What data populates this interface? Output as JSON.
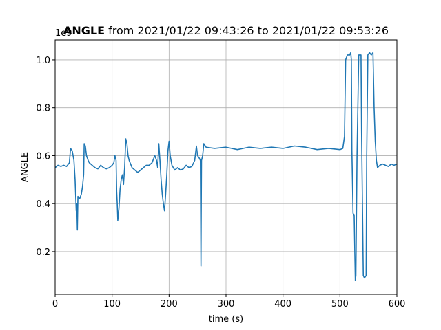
{
  "chart_data": {
    "type": "line",
    "title_variable": "ANGLE",
    "title": "from 2021/01/22 09:43:26 to 2021/01/22 09:53:26",
    "x_label": "time (s)",
    "y_label": "ANGLE",
    "y_offset_text": "1e9",
    "x": [
      0,
      5,
      10,
      15,
      20,
      25,
      27,
      30,
      33,
      35,
      37,
      38,
      39,
      40,
      43,
      46,
      48,
      50,
      51,
      53,
      55,
      58,
      60,
      65,
      70,
      75,
      80,
      85,
      90,
      95,
      100,
      103,
      105,
      107,
      108,
      109,
      110,
      112,
      114,
      116,
      118,
      120,
      122,
      124,
      126,
      128,
      130,
      135,
      140,
      145,
      150,
      155,
      160,
      165,
      170,
      175,
      178,
      180,
      182,
      184,
      186,
      188,
      190,
      192,
      194,
      196,
      198,
      200,
      202,
      205,
      210,
      215,
      220,
      225,
      230,
      235,
      240,
      245,
      248,
      250,
      253,
      255,
      256,
      257,
      259,
      261,
      265,
      280,
      300,
      320,
      340,
      360,
      380,
      400,
      420,
      440,
      460,
      480,
      500,
      505,
      508,
      510,
      513,
      517,
      519,
      520,
      521,
      523,
      525,
      527,
      528,
      530,
      533,
      537,
      538,
      540,
      541,
      543,
      546,
      547,
      549,
      552,
      555,
      558,
      560,
      562,
      564,
      566,
      570,
      575,
      580,
      585,
      590,
      595,
      600
    ],
    "series": [
      {
        "name": "ANGLE",
        "color": "#1f77b4",
        "values": [
          0.55,
          0.56,
          0.555,
          0.56,
          0.555,
          0.57,
          0.63,
          0.62,
          0.58,
          0.5,
          0.37,
          0.4,
          0.29,
          0.43,
          0.42,
          0.44,
          0.47,
          0.52,
          0.65,
          0.64,
          0.6,
          0.58,
          0.57,
          0.56,
          0.55,
          0.545,
          0.56,
          0.55,
          0.545,
          0.55,
          0.56,
          0.57,
          0.6,
          0.58,
          0.45,
          0.4,
          0.33,
          0.38,
          0.46,
          0.5,
          0.52,
          0.48,
          0.55,
          0.67,
          0.65,
          0.6,
          0.58,
          0.55,
          0.54,
          0.53,
          0.54,
          0.55,
          0.56,
          0.56,
          0.57,
          0.6,
          0.58,
          0.55,
          0.65,
          0.58,
          0.5,
          0.44,
          0.4,
          0.37,
          0.44,
          0.52,
          0.62,
          0.66,
          0.6,
          0.56,
          0.54,
          0.55,
          0.54,
          0.545,
          0.56,
          0.55,
          0.555,
          0.58,
          0.64,
          0.6,
          0.59,
          0.58,
          0.14,
          0.58,
          0.6,
          0.65,
          0.635,
          0.63,
          0.635,
          0.625,
          0.635,
          0.63,
          0.635,
          0.63,
          0.64,
          0.635,
          0.625,
          0.63,
          0.625,
          0.63,
          0.68,
          1.0,
          1.02,
          1.02,
          1.03,
          1.0,
          0.62,
          0.36,
          0.35,
          0.08,
          0.1,
          0.6,
          1.02,
          1.02,
          0.7,
          0.3,
          0.1,
          0.09,
          0.1,
          0.6,
          1.02,
          1.03,
          1.02,
          1.03,
          0.8,
          0.66,
          0.58,
          0.55,
          0.56,
          0.565,
          0.56,
          0.555,
          0.565,
          0.56,
          0.565
        ]
      }
    ],
    "xlim": [
      0,
      600
    ],
    "xticks": [
      0,
      100,
      200,
      300,
      400,
      500,
      600
    ],
    "ylim": [
      0.022,
      1.083
    ],
    "yticks": [
      0.2,
      0.4,
      0.6,
      0.8,
      {
        "value": 1,
        "label": "1.0"
      }
    ],
    "grid": true
  }
}
